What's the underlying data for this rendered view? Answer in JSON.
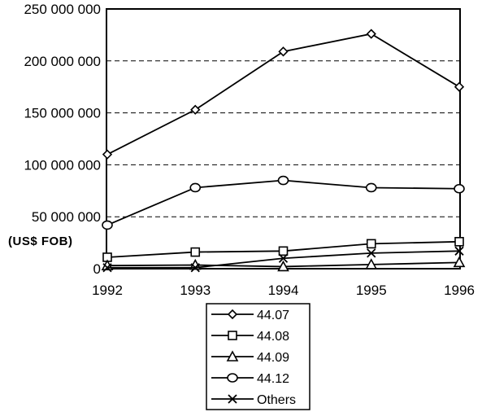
{
  "chart_data": {
    "type": "line",
    "x": [
      "1992",
      "1993",
      "1994",
      "1995",
      "1996"
    ],
    "series": [
      {
        "name": "44.07",
        "marker": "diamond",
        "values": [
          110000000,
          153000000,
          209000000,
          226000000,
          175000000
        ]
      },
      {
        "name": "44.08",
        "marker": "square",
        "values": [
          11000000,
          16000000,
          17000000,
          24000000,
          26000000
        ]
      },
      {
        "name": "44.09",
        "marker": "triangle",
        "values": [
          3000000,
          3500000,
          2000000,
          4000000,
          6000000
        ]
      },
      {
        "name": "44.12",
        "marker": "circle",
        "values": [
          42000000,
          78000000,
          85000000,
          78000000,
          77000000
        ]
      },
      {
        "name": "Others",
        "marker": "x",
        "values": [
          1000000,
          1000000,
          10000000,
          15000000,
          17000000
        ]
      }
    ],
    "yticks": [
      "0",
      "50 000 000",
      "100 000 000",
      "150 000 000",
      "200 000 000",
      "250 000 000"
    ],
    "ytick_values": [
      0,
      50000000,
      100000000,
      150000000,
      200000000,
      250000000
    ],
    "ylim": [
      0,
      250000000
    ],
    "unit_label": "(US$ FOB)",
    "grid": "horizontal dashed",
    "legend_position": "bottom"
  }
}
